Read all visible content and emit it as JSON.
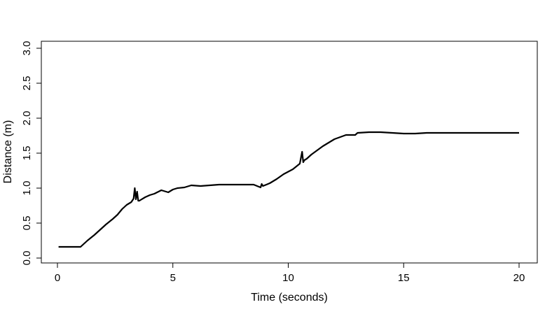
{
  "chart_data": {
    "type": "line",
    "title": "",
    "xlabel": "Time (seconds)",
    "ylabel": "Distance   (m)",
    "xlim": [
      0,
      20
    ],
    "ylim": [
      0,
      3
    ],
    "x_ticks": [
      0,
      5,
      10,
      15,
      20
    ],
    "x_tick_labels": [
      "0",
      "5",
      "10",
      "15",
      "20"
    ],
    "y_ticks": [
      0,
      0.5,
      1,
      1.5,
      2,
      2.5,
      3
    ],
    "y_tick_labels": [
      "0.0",
      "0.5",
      "1.0",
      "1.5",
      "2.0",
      "2.5",
      "3.0"
    ],
    "grid": false,
    "legend": "none",
    "line_color": "#000000",
    "series": [
      {
        "x": [
          0.05,
          0.5,
          1.0,
          1.3,
          1.6,
          1.9,
          2.1,
          2.4,
          2.6,
          2.8,
          3.0,
          3.2,
          3.3,
          3.35,
          3.4,
          3.45,
          3.5,
          3.55,
          3.6,
          3.8,
          4.0,
          4.2,
          4.5,
          4.8,
          5.0,
          5.2,
          5.5,
          5.8,
          6.2,
          7.0,
          7.5,
          8.0,
          8.5,
          8.8,
          8.85,
          8.9,
          9.2,
          9.5,
          9.8,
          10.2,
          10.5,
          10.6,
          10.65,
          10.7,
          10.8,
          11.0,
          11.5,
          12.0,
          12.5,
          12.9,
          13.0,
          13.5,
          14.0,
          14.5,
          15.0,
          15.5,
          16.0,
          17.0,
          18.0,
          19.0,
          20.0
        ],
        "y": [
          0.16,
          0.16,
          0.16,
          0.25,
          0.33,
          0.42,
          0.48,
          0.56,
          0.62,
          0.7,
          0.76,
          0.8,
          0.85,
          1.0,
          0.84,
          0.95,
          0.82,
          0.82,
          0.83,
          0.87,
          0.9,
          0.92,
          0.97,
          0.94,
          0.98,
          1.0,
          1.01,
          1.04,
          1.03,
          1.05,
          1.05,
          1.05,
          1.05,
          1.01,
          1.06,
          1.03,
          1.07,
          1.13,
          1.2,
          1.27,
          1.35,
          1.52,
          1.37,
          1.4,
          1.42,
          1.48,
          1.6,
          1.7,
          1.76,
          1.76,
          1.79,
          1.8,
          1.8,
          1.79,
          1.78,
          1.78,
          1.79,
          1.79,
          1.79,
          1.79,
          1.79
        ]
      }
    ]
  }
}
